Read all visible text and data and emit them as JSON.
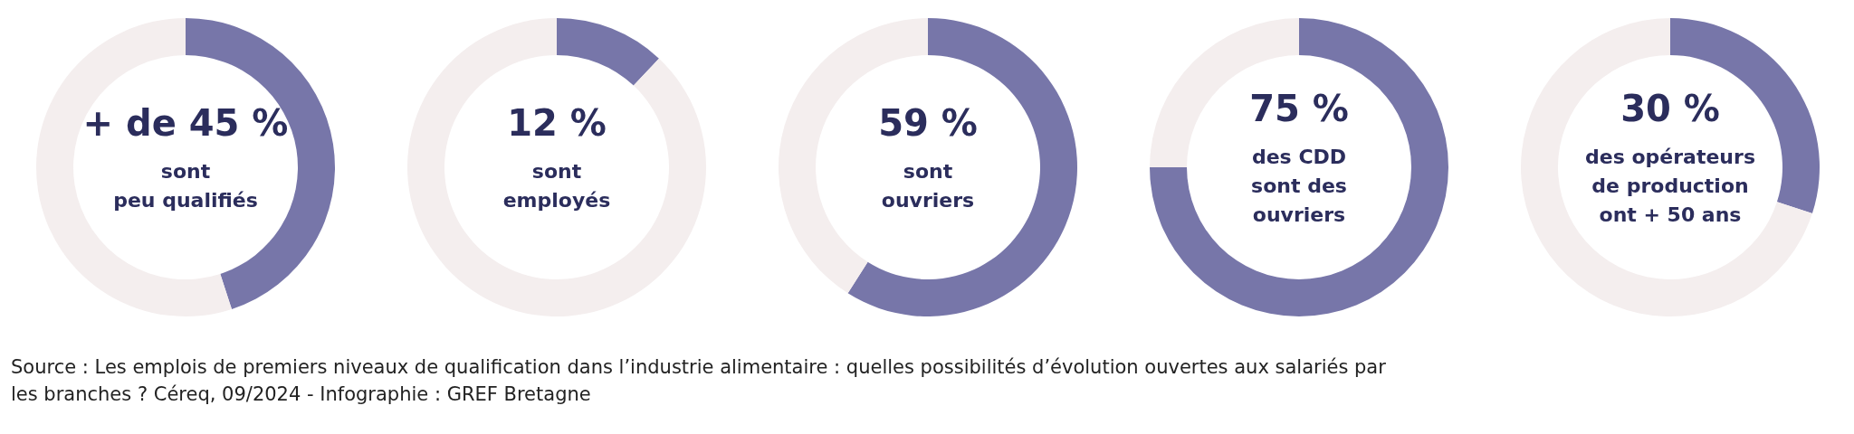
{
  "chart_data": [
    {
      "type": "donut",
      "categories": [
        null,
        null
      ],
      "values": [
        45,
        55
      ],
      "colors": [
        "#7776a9",
        "#f4eeee"
      ],
      "value_labels": [
        "+ de 45 %",
        null
      ],
      "annotations": [
        "sont",
        "peu qualifiés"
      ]
    },
    {
      "type": "donut",
      "categories": [
        null,
        null
      ],
      "values": [
        12,
        88
      ],
      "colors": [
        "#7776a9",
        "#f4eeee"
      ],
      "value_labels": [
        "12 %",
        null
      ],
      "annotations": [
        "sont",
        "employés"
      ]
    },
    {
      "type": "donut",
      "categories": [
        null,
        null
      ],
      "values": [
        59,
        41
      ],
      "colors": [
        "#7776a9",
        "#f4eeee"
      ],
      "value_labels": [
        "59 %",
        null
      ],
      "annotations": [
        "sont",
        "ouvriers"
      ]
    },
    {
      "type": "donut",
      "categories": [
        null,
        null
      ],
      "values": [
        75,
        25
      ],
      "colors": [
        "#7776a9",
        "#f4eeee"
      ],
      "value_labels": [
        "75 %",
        null
      ],
      "annotations": [
        "des CDD",
        "sont des",
        "ouvriers"
      ]
    },
    {
      "type": "donut",
      "categories": [
        null,
        null
      ],
      "values": [
        30,
        70
      ],
      "colors": [
        "#7776a9",
        "#f4eeee"
      ],
      "value_labels": [
        "30 %",
        null
      ],
      "annotations": [
        "des opérateurs",
        "de production",
        "ont + 50 ans"
      ]
    },
    {
      "type": "other",
      "annotations": [
        "Source : Les emplois de premiers niveaux de qualification dans l’industrie alimentaire : quelles possibilités d’évolution ouvertes aux salariés par les branches ? Céreq, 09/2024 - Infographie : GREF Bretagne"
      ]
    }
  ]
}
